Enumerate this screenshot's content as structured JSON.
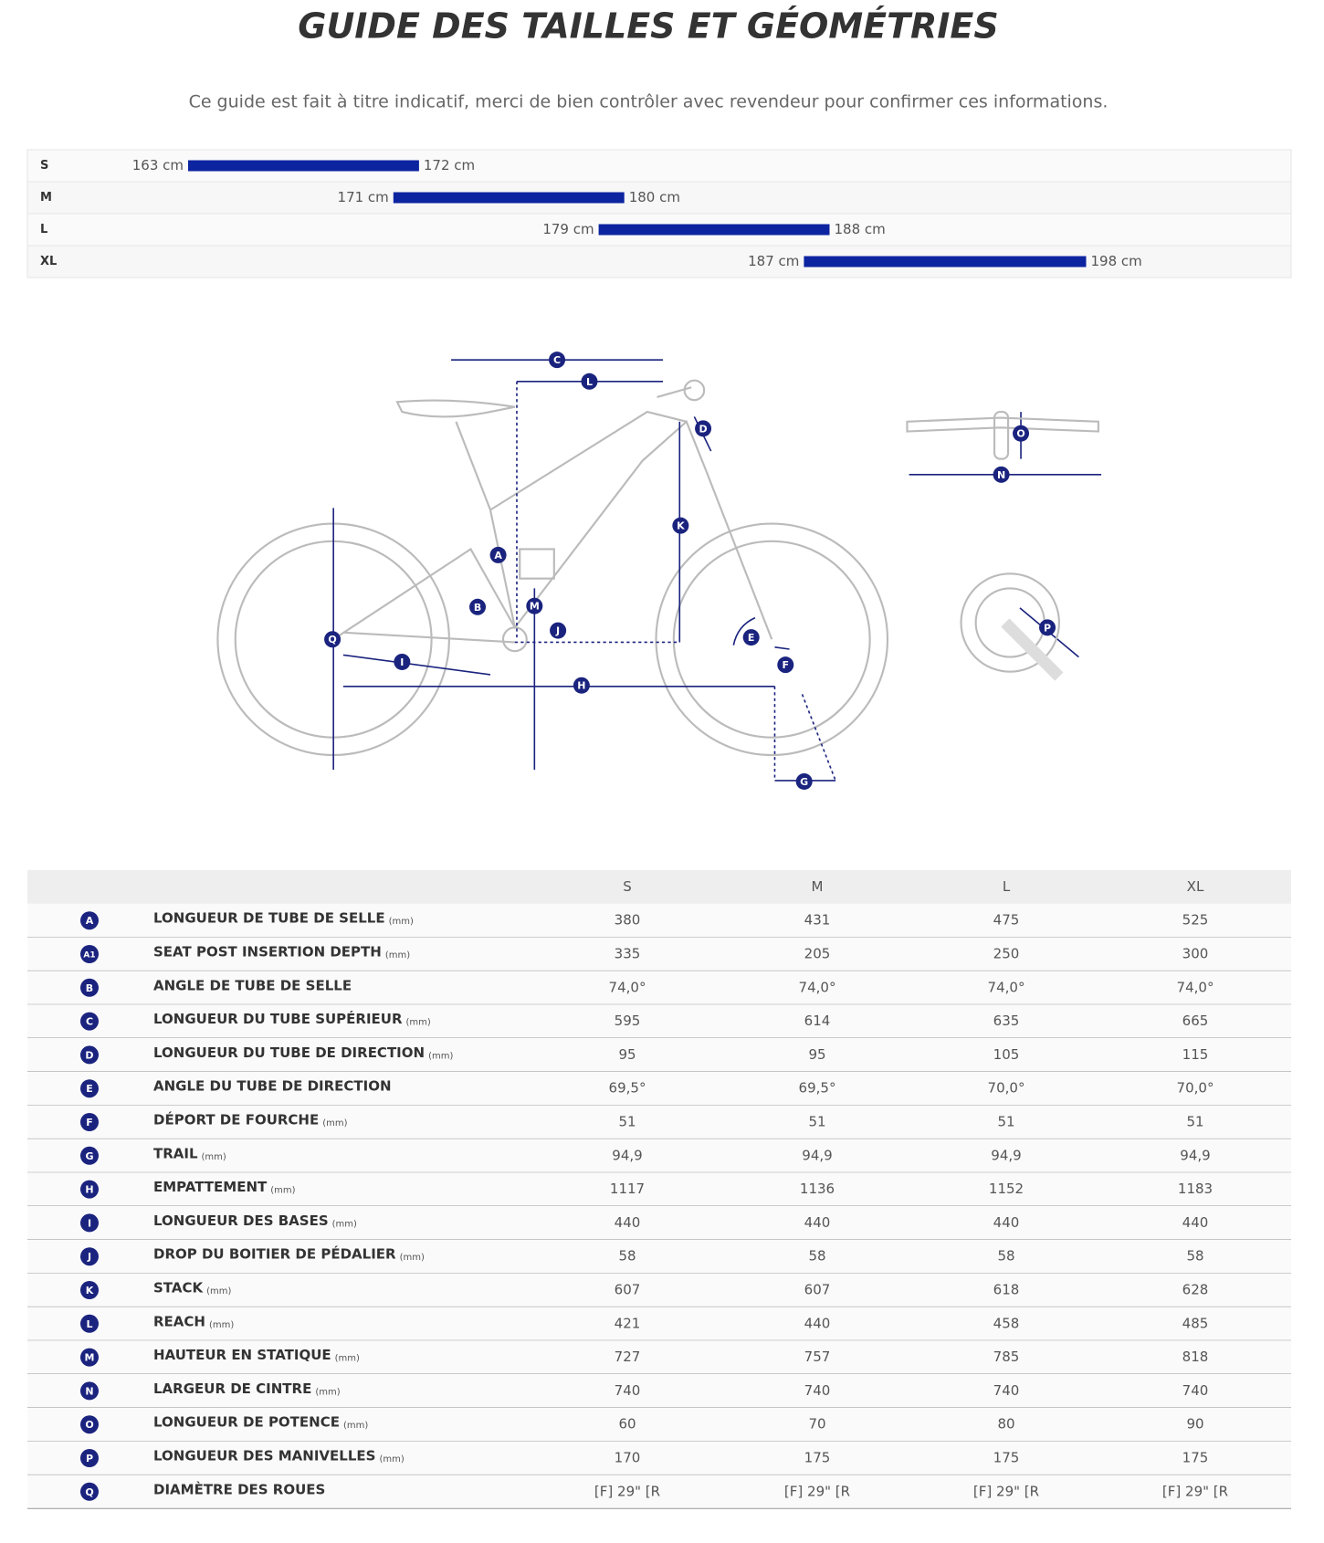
{
  "title": "GUIDE DES TAILLES ET GÉOMÉTRIES",
  "subtitle": "Ce guide est fait à titre indicatif, merci de bien contrôler avec revendeur pour confirmer ces informations.",
  "size_chart": {
    "rows": [
      {
        "size": "S",
        "from": {
          "value": 163,
          "label": "163 cm"
        },
        "to": {
          "value": 172,
          "label": "172 cm"
        }
      },
      {
        "size": "M",
        "from": {
          "value": 171,
          "label": "171 cm"
        },
        "to": {
          "value": 180,
          "label": "180 cm"
        }
      },
      {
        "size": "L",
        "from": {
          "value": 179,
          "label": "179 cm"
        },
        "to": {
          "value": 188,
          "label": "188 cm"
        }
      },
      {
        "size": "XL",
        "from": {
          "value": 187,
          "label": "187 cm"
        },
        "to": {
          "value": 198,
          "label": "198 cm"
        }
      }
    ]
  },
  "diagram": {
    "labels": [
      {
        "letter": "C"
      },
      {
        "letter": "L"
      },
      {
        "letter": "D"
      },
      {
        "letter": "K"
      },
      {
        "letter": "A"
      },
      {
        "letter": "M"
      },
      {
        "letter": "B"
      },
      {
        "letter": "J"
      },
      {
        "letter": "Q"
      },
      {
        "letter": "I"
      },
      {
        "letter": "H"
      },
      {
        "letter": "E"
      },
      {
        "letter": "F"
      },
      {
        "letter": "G"
      },
      {
        "letter": "O"
      },
      {
        "letter": "N"
      },
      {
        "letter": "P"
      }
    ]
  },
  "table": {
    "headers": [
      "S",
      "M",
      "L",
      "XL"
    ],
    "rows": [
      {
        "badge": "A",
        "name": "LONGUEUR DE TUBE DE SELLE",
        "unit": "(mm)",
        "values": [
          380,
          431,
          475,
          525
        ]
      },
      {
        "badge": "A1",
        "name": "SEAT POST INSERTION DEPTH",
        "unit": "(mm)",
        "values": [
          335,
          205,
          250,
          300
        ]
      },
      {
        "badge": "B",
        "name": "ANGLE DE TUBE DE SELLE",
        "values": [
          "74,0°",
          "74,0°",
          "74,0°",
          "74,0°"
        ]
      },
      {
        "badge": "C",
        "name": "LONGUEUR DU TUBE SUPÉRIEUR",
        "unit": "(mm)",
        "values": [
          595,
          614,
          635,
          665
        ]
      },
      {
        "badge": "D",
        "name": "LONGUEUR DU TUBE DE DIRECTION",
        "unit": "(mm)",
        "values": [
          95,
          95,
          105,
          115
        ]
      },
      {
        "badge": "E",
        "name": "ANGLE DU TUBE DE DIRECTION",
        "values": [
          "69,5°",
          "69,5°",
          "70,0°",
          "70,0°"
        ]
      },
      {
        "badge": "F",
        "name": "DÉPORT DE FOURCHE",
        "unit": "(mm)",
        "values": [
          51,
          51,
          51,
          51
        ]
      },
      {
        "badge": "G",
        "name": "TRAIL",
        "unit": "(mm)",
        "values": [
          "94,9",
          "94,9",
          "94,9",
          "94,9"
        ]
      },
      {
        "badge": "H",
        "name": "EMPATTEMENT",
        "unit": "(mm)",
        "values": [
          1117,
          1136,
          1152,
          1183
        ]
      },
      {
        "badge": "I",
        "name": "LONGUEUR DES BASES",
        "unit": "(mm)",
        "values": [
          440,
          440,
          440,
          440
        ]
      },
      {
        "badge": "J",
        "name": "DROP DU BOITIER DE PÉDALIER",
        "unit": "(mm)",
        "values": [
          58,
          58,
          58,
          58
        ]
      },
      {
        "badge": "K",
        "name": "STACK",
        "unit": "(mm)",
        "values": [
          607,
          607,
          618,
          628
        ]
      },
      {
        "badge": "L",
        "name": "REACH",
        "unit": "(mm)",
        "values": [
          421,
          440,
          458,
          485
        ]
      },
      {
        "badge": "M",
        "name": "HAUTEUR EN STATIQUE",
        "unit": "(mm)",
        "values": [
          727,
          757,
          785,
          818
        ]
      },
      {
        "badge": "N",
        "name": "LARGEUR DE CINTRE",
        "unit": "(mm)",
        "values": [
          740,
          740,
          740,
          740
        ]
      },
      {
        "badge": "O",
        "name": "LONGUEUR DE POTENCE",
        "unit": "(mm)",
        "values": [
          60,
          70,
          80,
          90
        ]
      },
      {
        "badge": "P",
        "name": "LONGUEUR DES MANIVELLES",
        "unit": "(mm)",
        "values": [
          170,
          175,
          175,
          175
        ]
      },
      {
        "badge": "Q",
        "name": "DIAMÈTRE DES ROUES",
        "values": [
          "[F] 29\" [R",
          "[F] 29\" [R",
          "[F] 29\" [R",
          "[F] 29\" [R"
        ]
      }
    ]
  }
}
